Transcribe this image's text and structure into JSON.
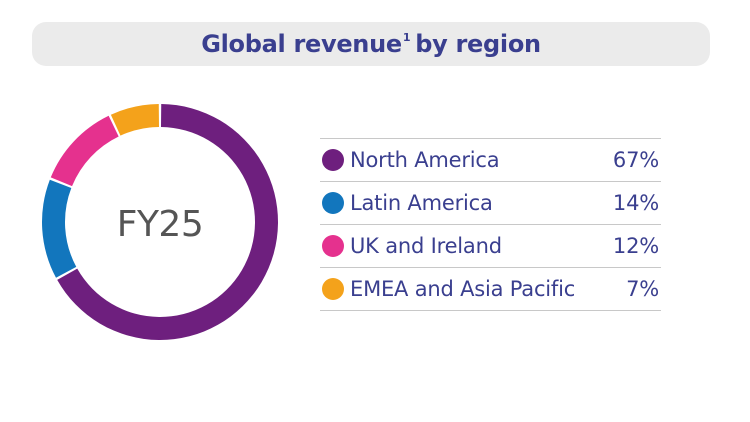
{
  "header": {
    "title_main": "Global revenue",
    "title_sup": "1",
    "title_tail": "by region"
  },
  "chart_data": {
    "type": "pie",
    "center_label": "FY25",
    "categories": [
      "North America",
      "Latin America",
      "UK and Ireland",
      "EMEA and Asia Pacific"
    ],
    "values": [
      67,
      14,
      12,
      7
    ],
    "value_labels": [
      "67%",
      "14%",
      "12%",
      "7%"
    ],
    "colors": [
      "#6e1f7e",
      "#1276bd",
      "#e5318e",
      "#f4a21b"
    ],
    "donut": true,
    "legend_position": "right"
  }
}
